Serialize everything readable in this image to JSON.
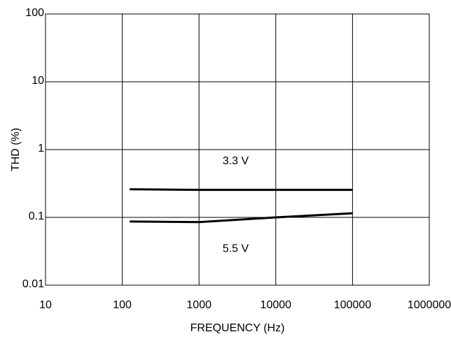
{
  "chart_data": {
    "type": "line",
    "title": "",
    "xlabel": "FREQUENCY (Hz)",
    "ylabel": "THD (%)",
    "xscale": "log",
    "yscale": "log",
    "xlim": [
      10,
      1000000
    ],
    "ylim": [
      0.01,
      100
    ],
    "grid": true,
    "legend": "none",
    "xticks": [
      {
        "value": 10,
        "label": "10"
      },
      {
        "value": 100,
        "label": "100"
      },
      {
        "value": 1000,
        "label": "1000"
      },
      {
        "value": 10000,
        "label": "10000"
      },
      {
        "value": 100000,
        "label": "100000"
      },
      {
        "value": 1000000,
        "label": "1000000"
      }
    ],
    "yticks": [
      {
        "value": 0.01,
        "label": "0.01"
      },
      {
        "value": 0.1,
        "label": "0.1"
      },
      {
        "value": 1,
        "label": "1"
      },
      {
        "value": 10,
        "label": "10"
      },
      {
        "value": 100,
        "label": "100"
      }
    ],
    "series": [
      {
        "name": "3.3 V",
        "color": "#000000",
        "x": [
          125,
          1000,
          10000,
          100000
        ],
        "y": [
          0.26,
          0.255,
          0.255,
          0.255
        ],
        "label": {
          "text": "3.3 V",
          "x": 3000,
          "y": 0.7
        }
      },
      {
        "name": "5.5 V",
        "color": "#000000",
        "x": [
          125,
          1000,
          10000,
          100000
        ],
        "y": [
          0.087,
          0.085,
          0.1,
          0.115
        ],
        "label": {
          "text": "5.5 V",
          "x": 3000,
          "y": 0.0355
        }
      }
    ]
  }
}
